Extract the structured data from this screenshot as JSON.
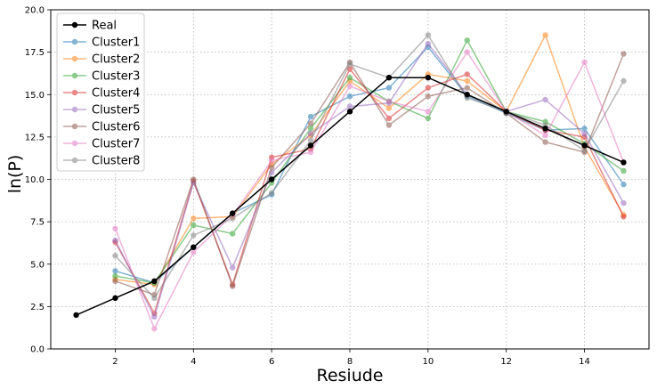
{
  "chart_data": {
    "type": "line",
    "title": "",
    "xlabel": "Resiude",
    "ylabel": "ln(P)",
    "xlim": [
      0.35,
      15.65
    ],
    "ylim": [
      0,
      20
    ],
    "x_ticks": [
      2,
      4,
      6,
      8,
      10,
      12,
      14
    ],
    "y_ticks": [
      0.0,
      2.5,
      5.0,
      7.5,
      10.0,
      12.5,
      15.0,
      17.5,
      20.0
    ],
    "grid": true,
    "legend_position": "top-left",
    "series": [
      {
        "name": "Real",
        "color": "#000000",
        "alpha": 1.0,
        "x": [
          1,
          2,
          3,
          4,
          5,
          6,
          7,
          8,
          9,
          10,
          11,
          12,
          13,
          14,
          15
        ],
        "y": [
          2.0,
          3.0,
          4.0,
          6.0,
          8.0,
          10.0,
          12.0,
          14.0,
          16.0,
          16.0,
          15.0,
          14.0,
          13.0,
          12.0,
          11.0
        ]
      },
      {
        "name": "Cluster1",
        "color": "#1f77b4",
        "alpha": 0.55,
        "x": [
          2,
          3,
          4,
          5,
          6,
          7,
          8,
          9,
          10,
          11,
          12,
          13,
          14,
          15
        ],
        "y": [
          4.6,
          3.9,
          6.0,
          8.0,
          9.1,
          13.7,
          14.9,
          15.4,
          17.8,
          14.9,
          13.9,
          12.9,
          13.0,
          9.7
        ]
      },
      {
        "name": "Cluster2",
        "color": "#ff7f0e",
        "alpha": 0.55,
        "x": [
          2,
          3,
          4,
          5,
          6,
          7,
          8,
          9,
          10,
          11,
          12,
          13,
          14,
          15
        ],
        "y": [
          4.1,
          3.8,
          7.7,
          7.8,
          10.9,
          12.6,
          15.8,
          14.2,
          16.2,
          15.8,
          14.0,
          18.5,
          11.9,
          7.9
        ]
      },
      {
        "name": "Cluster3",
        "color": "#2ca02c",
        "alpha": 0.55,
        "x": [
          2,
          3,
          4,
          5,
          6,
          7,
          8,
          9,
          10,
          11,
          12,
          13,
          14,
          15
        ],
        "y": [
          4.3,
          3.9,
          7.3,
          6.8,
          9.8,
          13.0,
          16.0,
          14.6,
          13.6,
          18.2,
          14.0,
          13.4,
          12.1,
          10.5
        ]
      },
      {
        "name": "Cluster4",
        "color": "#d62728",
        "alpha": 0.55,
        "x": [
          2,
          3,
          4,
          5,
          6,
          7,
          8,
          9,
          10,
          11,
          12,
          13,
          14,
          15
        ],
        "y": [
          6.3,
          2.1,
          9.9,
          3.8,
          11.3,
          11.8,
          16.5,
          13.6,
          15.4,
          16.2,
          14.0,
          12.9,
          12.5,
          7.8
        ]
      },
      {
        "name": "Cluster5",
        "color": "#9467bd",
        "alpha": 0.55,
        "x": [
          2,
          3,
          4,
          5,
          6,
          7,
          8,
          9,
          10,
          11,
          12,
          13,
          14,
          15
        ],
        "y": [
          6.4,
          1.9,
          9.8,
          4.8,
          10.4,
          12.7,
          14.3,
          14.5,
          18.0,
          15.0,
          14.0,
          14.7,
          12.7,
          8.6
        ]
      },
      {
        "name": "Cluster6",
        "color": "#8c564b",
        "alpha": 0.55,
        "x": [
          2,
          3,
          4,
          5,
          6,
          7,
          8,
          9,
          10,
          11,
          12,
          13,
          14,
          15
        ],
        "y": [
          4.0,
          3.2,
          10.0,
          3.7,
          10.7,
          13.3,
          16.9,
          13.2,
          14.9,
          15.4,
          13.9,
          12.2,
          11.6,
          17.4
        ]
      },
      {
        "name": "Cluster7",
        "color": "#e377c2",
        "alpha": 0.55,
        "x": [
          2,
          3,
          4,
          5,
          6,
          7,
          8,
          9,
          10,
          11,
          12,
          13,
          14,
          15
        ],
        "y": [
          7.1,
          1.2,
          5.7,
          7.9,
          11.1,
          11.6,
          15.5,
          14.6,
          14.0,
          17.5,
          14.0,
          12.6,
          16.9,
          11.0
        ]
      },
      {
        "name": "Cluster8",
        "color": "#7f7f7f",
        "alpha": 0.55,
        "x": [
          2,
          3,
          4,
          5,
          6,
          7,
          8,
          9,
          10,
          11,
          12,
          13,
          14,
          15
        ],
        "y": [
          5.5,
          3.0,
          6.7,
          7.7,
          9.2,
          12.3,
          16.8,
          16.0,
          18.5,
          14.8,
          14.0,
          13.2,
          11.7,
          15.8
        ]
      }
    ]
  }
}
